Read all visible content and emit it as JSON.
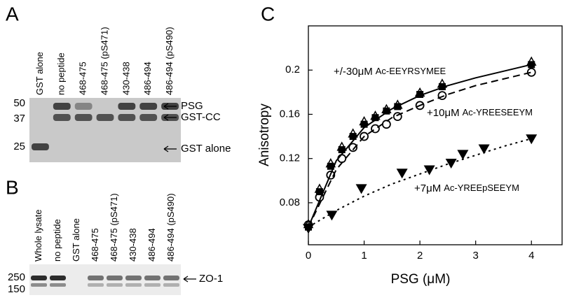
{
  "panel_a": {
    "letter": "A",
    "lanes": [
      "GST alone",
      "no peptide",
      "468-475",
      "468-475 (pS471)",
      "430-438",
      "486-494",
      "486-494 (pS490)"
    ],
    "markers": [
      "50",
      "37",
      "25"
    ],
    "bands": [
      "PSG",
      "GST-CC",
      "GST alone"
    ]
  },
  "panel_b": {
    "letter": "B",
    "lanes": [
      "Whole lysate",
      "no peptide",
      "GST alone",
      "468-475",
      "468-475 (pS471)",
      "430-438",
      "486-494",
      "486-494 (pS490)"
    ],
    "markers": [
      "250",
      "150"
    ],
    "bands": [
      "ZO-1"
    ]
  },
  "chart_data": {
    "type": "scatter",
    "letter": "C",
    "x_label": "PSG (μM)",
    "y_label": "Anisotropy",
    "xlim": [
      0,
      4.55
    ],
    "ylim": [
      0.042,
      0.24
    ],
    "xticks": [
      0,
      1,
      2,
      3,
      4
    ],
    "yticks": [
      0.08,
      0.12,
      0.16,
      0.2
    ],
    "annotations": [
      [
        "+/-30μM",
        "Ac-EEYRSYMEE"
      ],
      [
        "+10μM",
        "Ac-YREESEEYM"
      ],
      [
        "+7μM",
        "Ac-YREEpSEEYM"
      ]
    ],
    "series": [
      {
        "marker": "triangle-open",
        "color": "#000000",
        "x": [
          0,
          0.2,
          0.4,
          0.6,
          0.8,
          1.0,
          1.2,
          1.4,
          1.6,
          2.0,
          2.4,
          4.0
        ],
        "values": [
          0.06,
          0.092,
          0.115,
          0.13,
          0.142,
          0.153,
          0.158,
          0.164,
          0.168,
          0.179,
          0.187,
          0.207
        ]
      },
      {
        "marker": "square",
        "color": "#000000",
        "x": [
          0,
          0.2,
          0.4,
          0.6,
          0.8,
          1.0,
          1.2,
          1.4,
          1.6,
          2.0,
          2.4,
          4.0
        ],
        "values": [
          0.058,
          0.09,
          0.113,
          0.128,
          0.14,
          0.151,
          0.157,
          0.163,
          0.167,
          0.178,
          0.185,
          0.205
        ]
      },
      {
        "marker": "circle-open",
        "color": "#000000",
        "x": [
          0,
          0.2,
          0.4,
          0.6,
          0.8,
          1.0,
          1.2,
          1.4,
          1.6,
          2.0,
          2.4,
          4.0
        ],
        "values": [
          0.06,
          0.085,
          0.105,
          0.12,
          0.13,
          0.14,
          0.147,
          0.151,
          0.158,
          0.168,
          0.177,
          0.198
        ]
      },
      {
        "marker": "triangle-down",
        "color": "#000000",
        "x": [
          0,
          0.42,
          0.95,
          1.68,
          2.17,
          2.56,
          2.77,
          3.15,
          4.0
        ],
        "values": [
          0.057,
          0.069,
          0.093,
          0.107,
          0.11,
          0.116,
          0.124,
          0.129,
          0.138
        ]
      },
      {
        "type": "line",
        "style": "solid",
        "color": "#000000",
        "x": [
          0,
          0.5,
          1,
          1.5,
          2,
          2.5,
          3,
          3.5,
          4
        ],
        "values": [
          0.058,
          0.118,
          0.148,
          0.165,
          0.177,
          0.186,
          0.193,
          0.199,
          0.205
        ]
      },
      {
        "type": "line",
        "style": "dashed",
        "color": "#000000",
        "x": [
          0,
          0.5,
          1,
          1.5,
          2,
          2.5,
          3,
          3.5,
          4
        ],
        "values": [
          0.058,
          0.11,
          0.14,
          0.157,
          0.168,
          0.178,
          0.186,
          0.192,
          0.198
        ]
      },
      {
        "type": "line",
        "style": "dotted",
        "color": "#000000",
        "x": [
          0,
          0.5,
          1,
          1.5,
          2,
          2.5,
          3,
          3.5,
          4
        ],
        "values": [
          0.058,
          0.073,
          0.086,
          0.097,
          0.106,
          0.115,
          0.123,
          0.131,
          0.138
        ]
      }
    ]
  }
}
